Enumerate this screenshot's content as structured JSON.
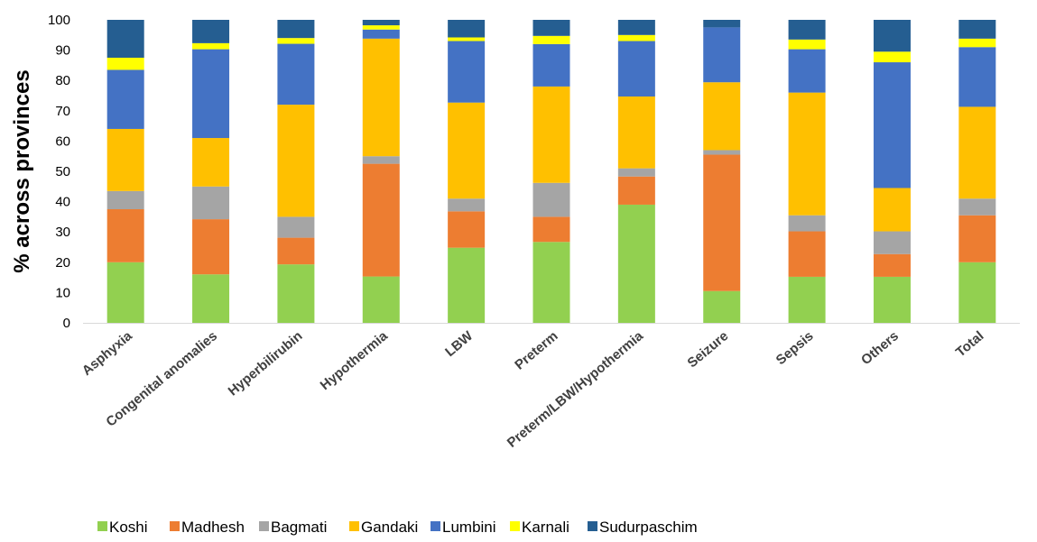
{
  "chart_data": {
    "type": "bar",
    "stacked": true,
    "title": "",
    "xlabel": "",
    "ylabel": "% across provinces",
    "ylim": [
      0,
      100
    ],
    "yticks": [
      0,
      10,
      20,
      30,
      40,
      50,
      60,
      70,
      80,
      90,
      100
    ],
    "grid": false,
    "legend_position": "bottom",
    "categories": [
      "Asphyxia",
      "Congenital anomalies",
      "Hyperbilirubin",
      "Hypothermia",
      "LBW",
      "Preterm",
      "Preterm/LBW/Hypothermia",
      "Seizure",
      "Sepsis",
      "Others",
      "Total"
    ],
    "series": [
      {
        "name": "Koshi",
        "color": "#92D050",
        "values": [
          20,
          16,
          19.3,
          15.3,
          24.8,
          26.7,
          39,
          10.5,
          15.2,
          15.2,
          20
        ]
      },
      {
        "name": "Madhesh",
        "color": "#ED7D31",
        "values": [
          17.5,
          18.2,
          8.8,
          37.2,
          12,
          8.3,
          9.3,
          45,
          15,
          7.5,
          15.5
        ]
      },
      {
        "name": "Bagmati",
        "color": "#A5A5A5",
        "values": [
          6,
          10.8,
          6.9,
          2.5,
          4.2,
          11.2,
          2.7,
          1.5,
          5.3,
          7.5,
          5.5
        ]
      },
      {
        "name": "Gandaki",
        "color": "#FFC000",
        "values": [
          20.5,
          16,
          37,
          38.8,
          31.7,
          31.8,
          23.7,
          22.4,
          40.5,
          14.3,
          30.3
        ]
      },
      {
        "name": "Lumbini",
        "color": "#4472C4",
        "values": [
          19.5,
          29.3,
          20.1,
          3,
          20.3,
          14,
          18.3,
          18.1,
          14.3,
          41.5,
          19.7
        ]
      },
      {
        "name": "Karnali",
        "color": "#FFFF00",
        "values": [
          4,
          2,
          1.9,
          1.4,
          1.2,
          2.7,
          2,
          0,
          3.2,
          3.5,
          2.8
        ]
      },
      {
        "name": "Sudurpaschim",
        "color": "#255E91",
        "values": [
          12.5,
          7.7,
          6,
          1.8,
          5.8,
          5.3,
          5,
          2.5,
          6.5,
          10.5,
          6.2
        ]
      }
    ]
  }
}
